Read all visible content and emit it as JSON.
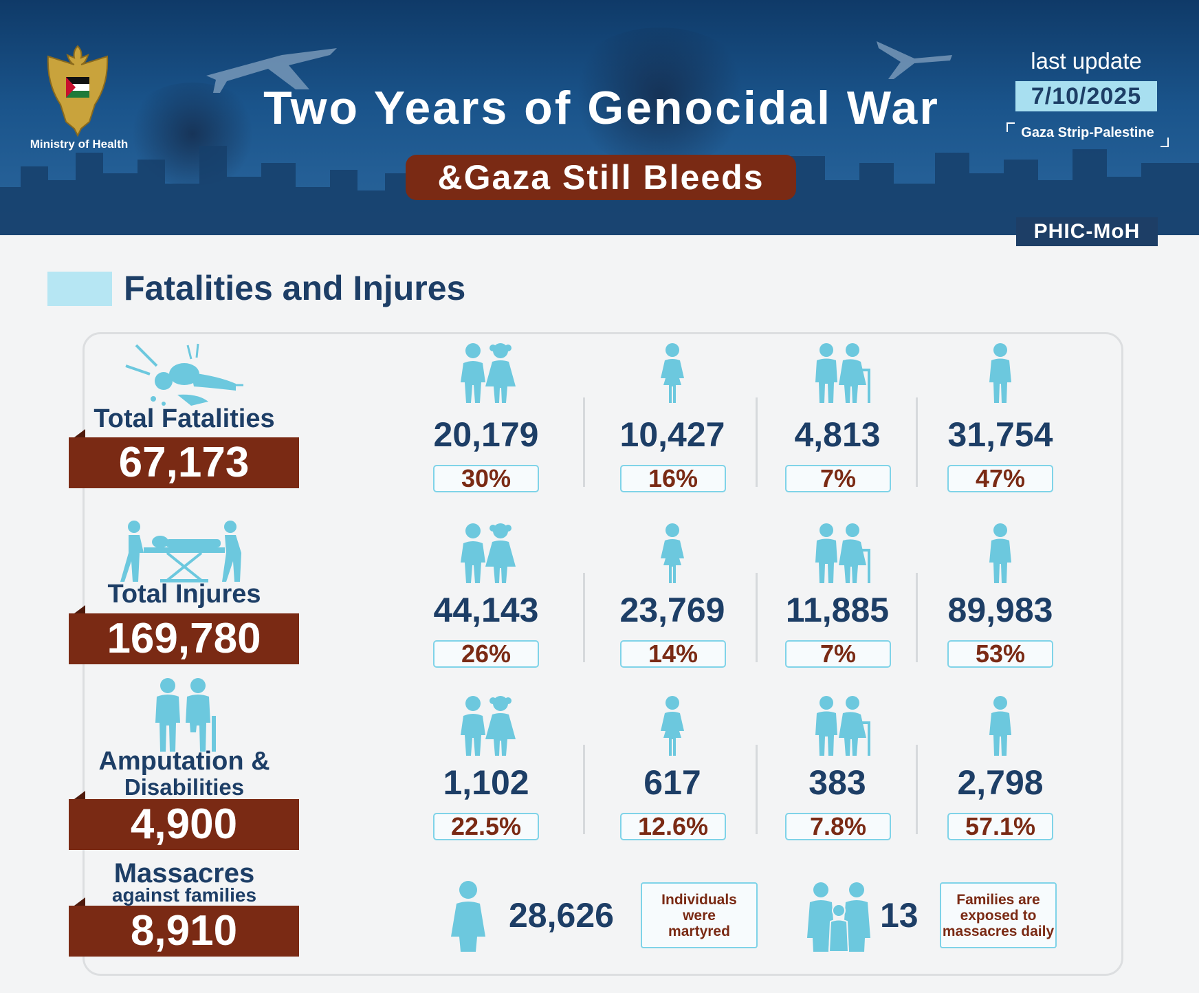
{
  "header": {
    "ministry": "Ministry of Health",
    "title": "Two Years of Genocidal War",
    "subtitle": "&Gaza Still Bleeds",
    "last_update_label": "last update",
    "last_update_date": "7/10/2025",
    "region": "Gaza Strip-Palestine",
    "source": "PHIC-MoH"
  },
  "section": {
    "title": "Fatalities and Injures"
  },
  "colors": {
    "brand_dark": "#1d3e66",
    "accent_red": "#7a2a14",
    "icon_blue": "#6cc8de",
    "light_blue": "#b6e6f3"
  },
  "rows": [
    {
      "label": "Total Fatalities",
      "total": "67,173",
      "icon": "fallen-person-icon",
      "stats": [
        {
          "group": "children",
          "icon": "children-icon",
          "value": "20,179",
          "percent": "30%"
        },
        {
          "group": "women",
          "icon": "woman-icon",
          "value": "10,427",
          "percent": "16%"
        },
        {
          "group": "elderly",
          "icon": "elderly-icon",
          "value": "4,813",
          "percent": "7%"
        },
        {
          "group": "men",
          "icon": "man-icon",
          "value": "31,754",
          "percent": "47%"
        }
      ]
    },
    {
      "label": "Total Injures",
      "total": "169,780",
      "icon": "stretcher-icon",
      "stats": [
        {
          "group": "children",
          "icon": "children-icon",
          "value": "44,143",
          "percent": "26%"
        },
        {
          "group": "women",
          "icon": "woman-icon",
          "value": "23,769",
          "percent": "14%"
        },
        {
          "group": "elderly",
          "icon": "elderly-icon",
          "value": "11,885",
          "percent": "7%"
        },
        {
          "group": "men",
          "icon": "man-icon",
          "value": "89,983",
          "percent": "53%"
        }
      ]
    },
    {
      "label": "Amputation &",
      "label_line2": "Disabilities",
      "total": "4,900",
      "icon": "amputee-icon",
      "stats": [
        {
          "group": "children",
          "icon": "children-icon",
          "value": "1,102",
          "percent": "22.5%"
        },
        {
          "group": "women",
          "icon": "woman-icon",
          "value": "617",
          "percent": "12.6%"
        },
        {
          "group": "elderly",
          "icon": "elderly-icon",
          "value": "383",
          "percent": "7.8%"
        },
        {
          "group": "men",
          "icon": "man-icon",
          "value": "2,798",
          "percent": "57.1%"
        }
      ]
    }
  ],
  "massacres": {
    "label": "Massacres",
    "label_line2": "against families",
    "total": "8,910",
    "individuals_value": "28,626",
    "individuals_note": [
      "Individuals",
      "were",
      "martyred"
    ],
    "families_value": "13",
    "families_note": [
      "Families are",
      "exposed to",
      "massacres daily"
    ]
  }
}
